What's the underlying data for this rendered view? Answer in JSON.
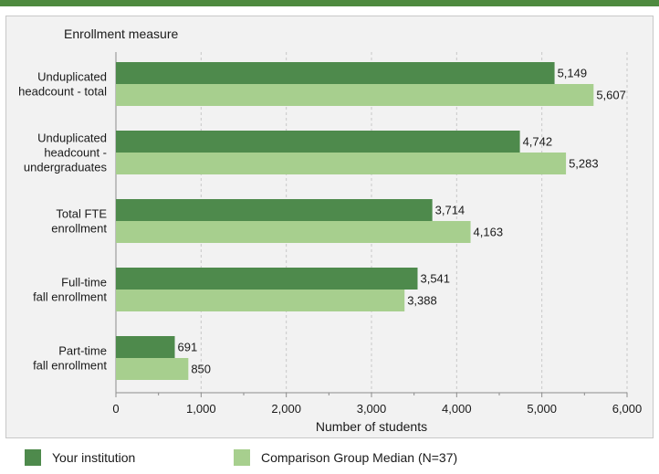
{
  "colors": {
    "top_rule": "#4e8a3f",
    "panel_bg": "#f2f2f2",
    "panel_border": "#c8c8c8",
    "gridline": "#c8c8c8",
    "series_institution": "#4e8a4c",
    "series_comparison": "#a7cf8e",
    "text": "#1a1a1a"
  },
  "chart_data": {
    "type": "bar",
    "orientation": "horizontal",
    "ylabel": "Enrollment measure",
    "xlabel": "Number of students",
    "xlim": [
      0,
      6000
    ],
    "xticks": [
      "0",
      "1,000",
      "2,000",
      "3,000",
      "4,000",
      "5,000",
      "6,000"
    ],
    "tick_values": [
      0,
      1000,
      2000,
      3000,
      4000,
      5000,
      6000
    ],
    "grid": true,
    "legend_position": "bottom",
    "categories": [
      [
        "Unduplicated",
        "headcount - total"
      ],
      [
        "Unduplicated",
        "headcount -",
        "undergraduates"
      ],
      [
        "Total FTE",
        "enrollment"
      ],
      [
        "Full-time",
        "fall enrollment"
      ],
      [
        "Part-time",
        "fall enrollment"
      ]
    ],
    "series": [
      {
        "name": "Your institution",
        "values": [
          5149,
          4742,
          3714,
          3541,
          691
        ],
        "labels": [
          "5,149",
          "4,742",
          "3,714",
          "3,541",
          "691"
        ]
      },
      {
        "name": "Comparison Group Median (N=37)",
        "values": [
          5607,
          5283,
          4163,
          3388,
          850
        ],
        "labels": [
          "5,607",
          "5,283",
          "4,163",
          "3,388",
          "850"
        ]
      }
    ]
  }
}
